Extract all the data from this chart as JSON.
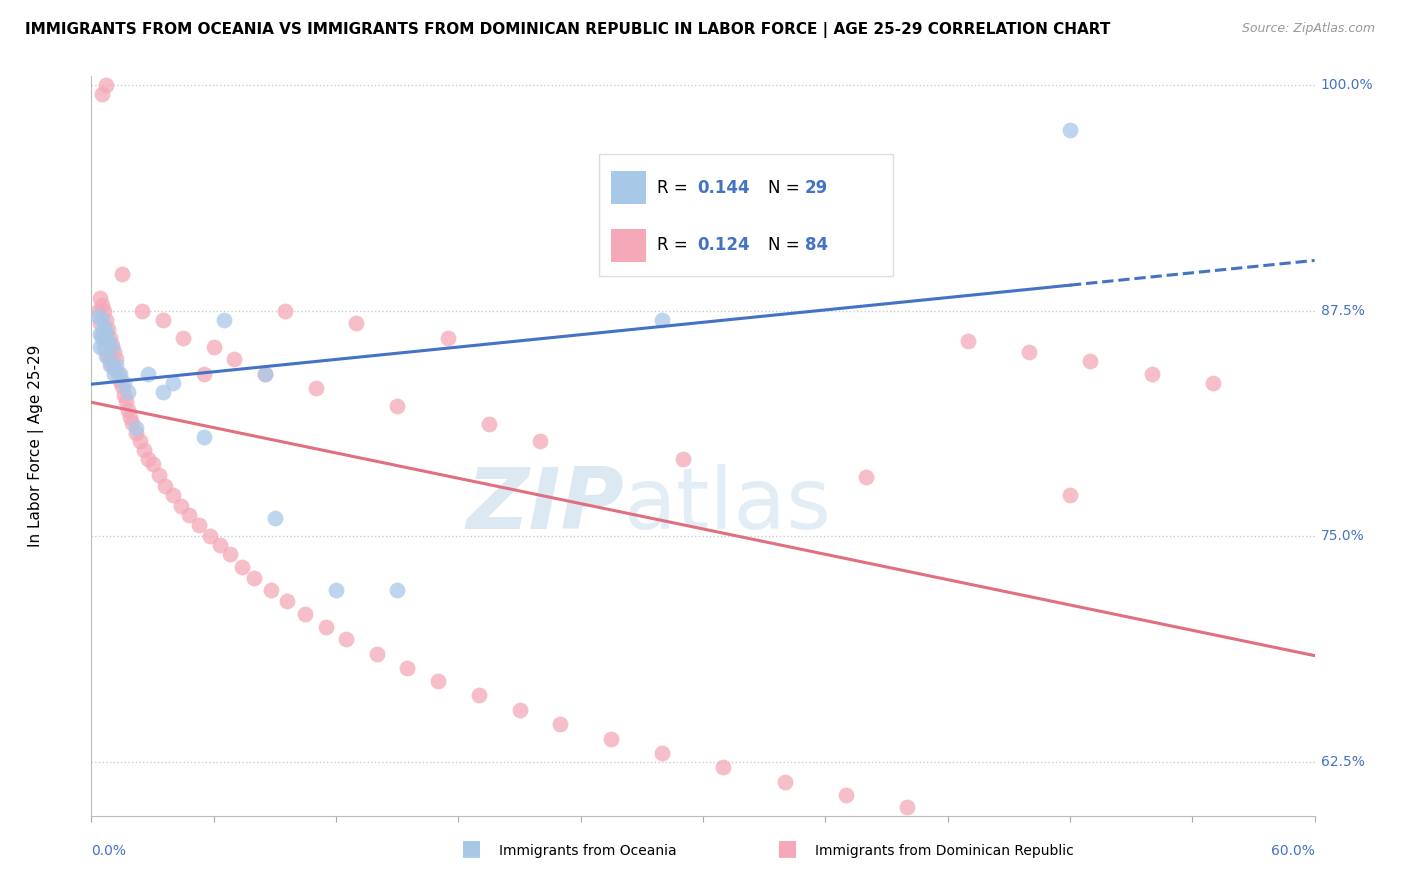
{
  "title": "IMMIGRANTS FROM OCEANIA VS IMMIGRANTS FROM DOMINICAN REPUBLIC IN LABOR FORCE | AGE 25-29 CORRELATION CHART",
  "source": "Source: ZipAtlas.com",
  "xmin": 0.0,
  "xmax": 0.6,
  "ymin": 0.595,
  "ymax": 1.005,
  "color_oceania": "#a8c8e8",
  "color_dominican": "#f4a8b8",
  "color_blue": "#4472C4",
  "color_pink": "#E07080",
  "watermark_zip": "ZIP",
  "watermark_atlas": "atlas",
  "legend_r1": "R = 0.144",
  "legend_n1": "N = 29",
  "legend_r2": "R = 0.124",
  "legend_n2": "N = 84",
  "oceania_x": [
    0.003,
    0.004,
    0.004,
    0.005,
    0.005,
    0.006,
    0.006,
    0.007,
    0.007,
    0.008,
    0.009,
    0.01,
    0.011,
    0.012,
    0.014,
    0.016,
    0.018,
    0.022,
    0.028,
    0.035,
    0.04,
    0.055,
    0.065,
    0.085,
    0.09,
    0.12,
    0.15,
    0.28,
    0.48
  ],
  "oceania_y": [
    0.872,
    0.862,
    0.855,
    0.87,
    0.86,
    0.865,
    0.855,
    0.863,
    0.85,
    0.858,
    0.845,
    0.855,
    0.84,
    0.845,
    0.84,
    0.835,
    0.83,
    0.81,
    0.84,
    0.83,
    0.835,
    0.805,
    0.87,
    0.84,
    0.76,
    0.72,
    0.72,
    0.87,
    0.975
  ],
  "dominican_x": [
    0.003,
    0.004,
    0.004,
    0.005,
    0.005,
    0.006,
    0.006,
    0.007,
    0.007,
    0.008,
    0.008,
    0.009,
    0.009,
    0.01,
    0.01,
    0.011,
    0.011,
    0.012,
    0.013,
    0.014,
    0.015,
    0.016,
    0.017,
    0.018,
    0.019,
    0.02,
    0.022,
    0.024,
    0.026,
    0.028,
    0.03,
    0.033,
    0.036,
    0.04,
    0.044,
    0.048,
    0.053,
    0.058,
    0.063,
    0.068,
    0.074,
    0.08,
    0.088,
    0.096,
    0.105,
    0.115,
    0.125,
    0.14,
    0.155,
    0.17,
    0.19,
    0.21,
    0.23,
    0.255,
    0.28,
    0.31,
    0.34,
    0.37,
    0.4,
    0.43,
    0.46,
    0.49,
    0.52,
    0.55,
    0.055,
    0.045,
    0.035,
    0.025,
    0.015,
    0.007,
    0.005,
    0.095,
    0.13,
    0.175,
    0.06,
    0.07,
    0.085,
    0.11,
    0.15,
    0.195,
    0.22,
    0.29,
    0.38,
    0.48
  ],
  "dominican_y": [
    0.875,
    0.882,
    0.868,
    0.878,
    0.862,
    0.875,
    0.86,
    0.87,
    0.855,
    0.865,
    0.85,
    0.86,
    0.847,
    0.856,
    0.845,
    0.852,
    0.843,
    0.848,
    0.84,
    0.836,
    0.833,
    0.828,
    0.825,
    0.82,
    0.816,
    0.813,
    0.807,
    0.803,
    0.798,
    0.793,
    0.79,
    0.784,
    0.778,
    0.773,
    0.767,
    0.762,
    0.756,
    0.75,
    0.745,
    0.74,
    0.733,
    0.727,
    0.72,
    0.714,
    0.707,
    0.7,
    0.693,
    0.685,
    0.677,
    0.67,
    0.662,
    0.654,
    0.646,
    0.638,
    0.63,
    0.622,
    0.614,
    0.607,
    0.6,
    0.858,
    0.852,
    0.847,
    0.84,
    0.835,
    0.84,
    0.86,
    0.87,
    0.875,
    0.895,
    1.0,
    0.995,
    0.875,
    0.868,
    0.86,
    0.855,
    0.848,
    0.84,
    0.832,
    0.822,
    0.812,
    0.803,
    0.793,
    0.783,
    0.773
  ]
}
